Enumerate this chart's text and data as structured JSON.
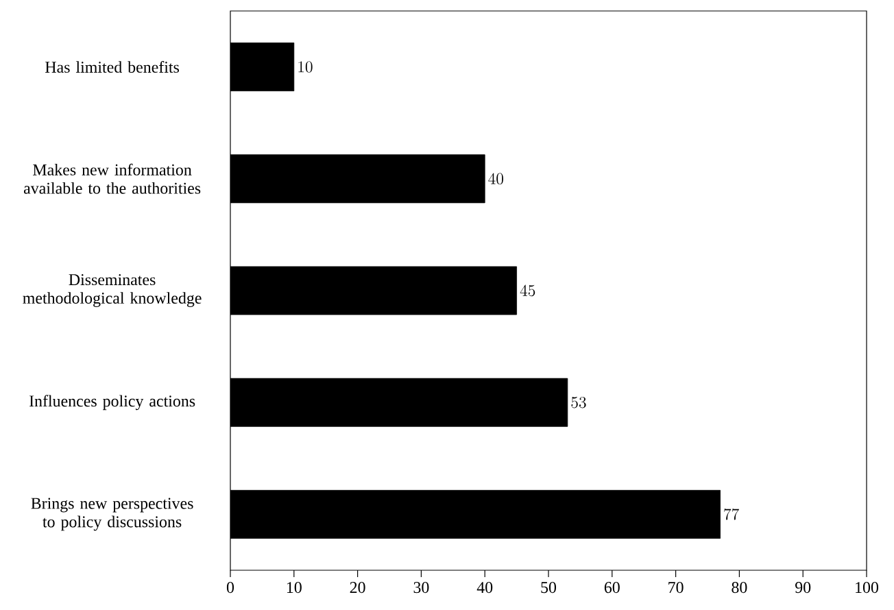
{
  "chart_data": {
    "type": "bar",
    "orientation": "horizontal",
    "categories": [
      "Has limited benefits",
      "Makes new information available to the authorities",
      "Disseminates methodological knowledge",
      "Influences policy actions",
      "Brings new perspectives to policy discussions"
    ],
    "values": [
      10,
      40,
      45,
      53,
      77
    ],
    "color": "#000000",
    "xlim": [
      0,
      100
    ],
    "xticks": [
      0,
      10,
      20,
      30,
      40,
      50,
      60,
      70,
      80,
      90,
      100
    ],
    "data_labels": true,
    "grid": false
  }
}
